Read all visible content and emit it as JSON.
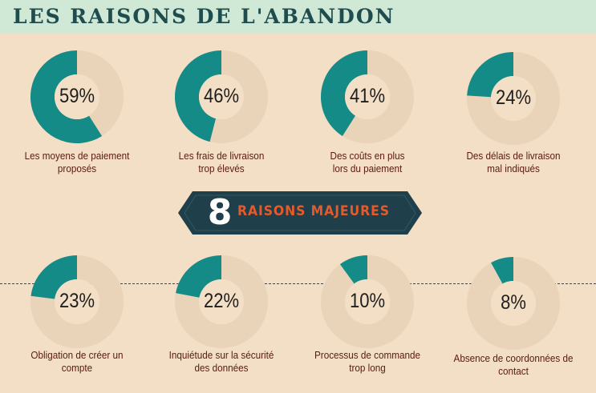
{
  "header": {
    "title": "LES RAISONS DE L'ABANDON"
  },
  "banner": {
    "number": "8",
    "text": "RAISONS MAJEURES"
  },
  "colors": {
    "accent": "#148b87",
    "track": "#e9d3b9",
    "background": "#f3dfc5",
    "banner": "#1f3f4a",
    "banner_text": "#e55a2b",
    "label": "#5a1a12"
  },
  "reasons": [
    {
      "value": 0.59,
      "pct_label": "59%",
      "label": "Les moyens de paiement\nproposés"
    },
    {
      "value": 0.46,
      "pct_label": "46%",
      "label": "Les frais de livraison\ntrop élevés"
    },
    {
      "value": 0.41,
      "pct_label": "41%",
      "label": "Des coûts en plus\nlors du paiement"
    },
    {
      "value": 0.24,
      "pct_label": "24%",
      "label": "Des délais de livraison\nmal indiqués"
    },
    {
      "value": 0.23,
      "pct_label": "23%",
      "label": "Obligation de créer un\ncompte"
    },
    {
      "value": 0.22,
      "pct_label": "22%",
      "label": "Inquiétude sur la sécurité\ndes données"
    },
    {
      "value": 0.1,
      "pct_label": "10%",
      "label": "Processus de commande\ntrop long"
    },
    {
      "value": 0.08,
      "pct_label": "8%",
      "label": "Absence de coordonnées de\ncontact"
    }
  ]
}
